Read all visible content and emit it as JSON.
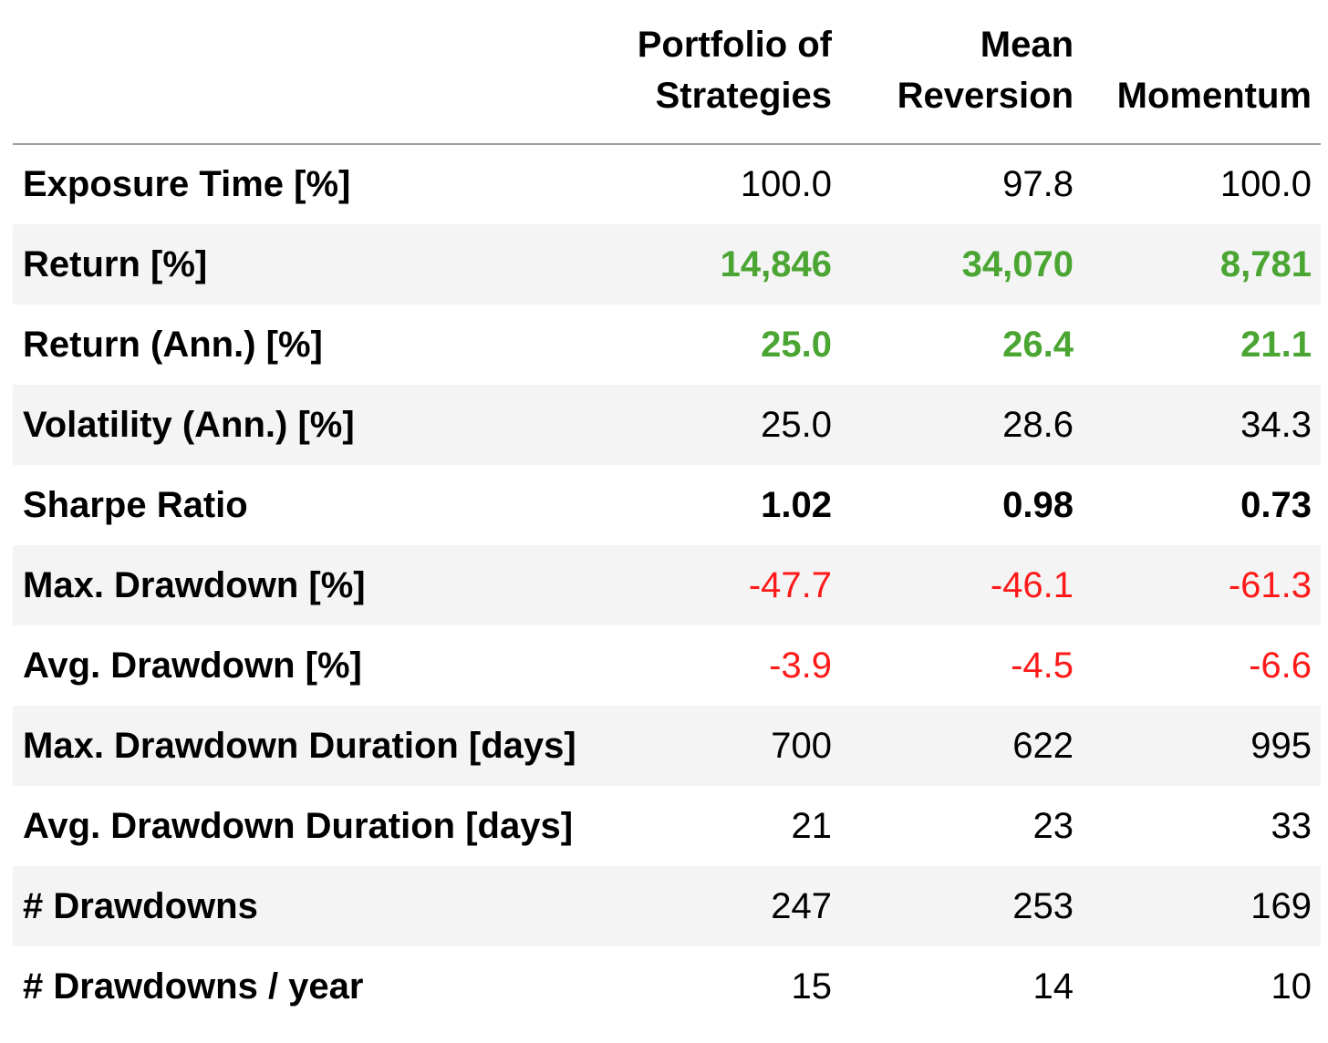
{
  "table": {
    "columns": [
      [
        "Portfolio of",
        "Strategies"
      ],
      [
        "Mean",
        "Reversion"
      ],
      [
        "",
        "Momentum"
      ]
    ],
    "rows": [
      {
        "label": "Exposure Time [%]",
        "values": [
          "100.0",
          "97.8",
          "100.0"
        ],
        "style": "normal"
      },
      {
        "label": "Return [%]",
        "values": [
          "14,846",
          "34,070",
          "8,781"
        ],
        "style": "positive"
      },
      {
        "label": "Return (Ann.) [%]",
        "values": [
          "25.0",
          "26.4",
          "21.1"
        ],
        "style": "positive"
      },
      {
        "label": "Volatility (Ann.) [%]",
        "values": [
          "25.0",
          "28.6",
          "34.3"
        ],
        "style": "normal"
      },
      {
        "label": "Sharpe Ratio",
        "values": [
          "1.02",
          "0.98",
          "0.73"
        ],
        "style": "bold"
      },
      {
        "label": "Max. Drawdown [%]",
        "values": [
          "-47.7",
          "-46.1",
          "-61.3"
        ],
        "style": "negative"
      },
      {
        "label": "Avg. Drawdown [%]",
        "values": [
          "-3.9",
          "-4.5",
          "-6.6"
        ],
        "style": "negative"
      },
      {
        "label": "Max. Drawdown Duration [days]",
        "values": [
          "700",
          "622",
          "995"
        ],
        "style": "normal"
      },
      {
        "label": "Avg. Drawdown Duration [days]",
        "values": [
          "21",
          "23",
          "33"
        ],
        "style": "normal"
      },
      {
        "label": "# Drawdowns",
        "values": [
          "247",
          "253",
          "169"
        ],
        "style": "normal"
      },
      {
        "label": "# Drawdowns / year",
        "values": [
          "15",
          "14",
          "10"
        ],
        "style": "normal"
      }
    ]
  },
  "colors": {
    "positive": "#4aa532",
    "negative": "#ff1a1a",
    "row_shade": "#f4f4f4",
    "header_rule": "#9e9e9e"
  }
}
